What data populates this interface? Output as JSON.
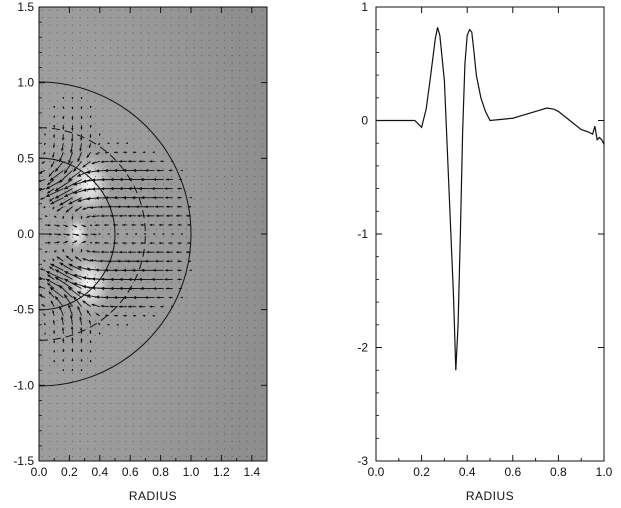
{
  "chart_data": [
    {
      "type": "vector-field",
      "xlabel": "RADIUS",
      "ylabel": "",
      "xlim": [
        0.0,
        1.5
      ],
      "ylim": [
        -1.5,
        1.5
      ],
      "x_ticks": [
        "0.0",
        "0.2",
        "0.4",
        "0.6",
        "0.8",
        "1.0",
        "1.2",
        "1.4"
      ],
      "y_ticks": [
        "1.5",
        "1.0",
        "0.5",
        "0.0",
        "-0.5",
        "-1.0",
        "-1.5"
      ],
      "background": "gray shaded field",
      "circles": [
        {
          "radius": 1.0,
          "style": "solid"
        },
        {
          "radius": 0.5,
          "style": "solid"
        },
        {
          "radius": 0.7,
          "style": "dashed"
        }
      ]
    },
    {
      "type": "line",
      "xlabel": "RADIUS",
      "ylabel": "",
      "xlim": [
        0.0,
        1.0
      ],
      "ylim": [
        -3,
        1
      ],
      "x_ticks": [
        "0.0",
        "0.2",
        "0.4",
        "0.6",
        "0.8",
        "1.0"
      ],
      "y_ticks": [
        "1",
        "0",
        "-1",
        "-2",
        "-3"
      ],
      "series": [
        {
          "x": [
            0.0,
            0.1,
            0.17,
            0.2,
            0.22,
            0.24,
            0.26,
            0.27,
            0.28,
            0.3,
            0.32,
            0.34,
            0.35,
            0.36,
            0.37,
            0.38,
            0.39,
            0.4,
            0.41,
            0.42,
            0.43,
            0.44,
            0.46,
            0.48,
            0.5,
            0.55,
            0.6,
            0.65,
            0.7,
            0.75,
            0.78,
            0.8,
            0.85,
            0.9,
            0.93,
            0.95,
            0.96,
            0.97,
            0.98,
            0.99,
            1.0
          ],
          "y": [
            0.0,
            0.0,
            0.0,
            -0.06,
            0.1,
            0.4,
            0.72,
            0.82,
            0.75,
            0.35,
            -0.6,
            -1.55,
            -2.2,
            -1.8,
            -1.0,
            -0.1,
            0.5,
            0.75,
            0.8,
            0.78,
            0.6,
            0.4,
            0.2,
            0.08,
            0.0,
            0.01,
            0.02,
            0.05,
            0.08,
            0.11,
            0.1,
            0.08,
            0.0,
            -0.08,
            -0.1,
            -0.12,
            -0.05,
            -0.17,
            -0.15,
            -0.17,
            -0.21
          ]
        }
      ]
    }
  ]
}
